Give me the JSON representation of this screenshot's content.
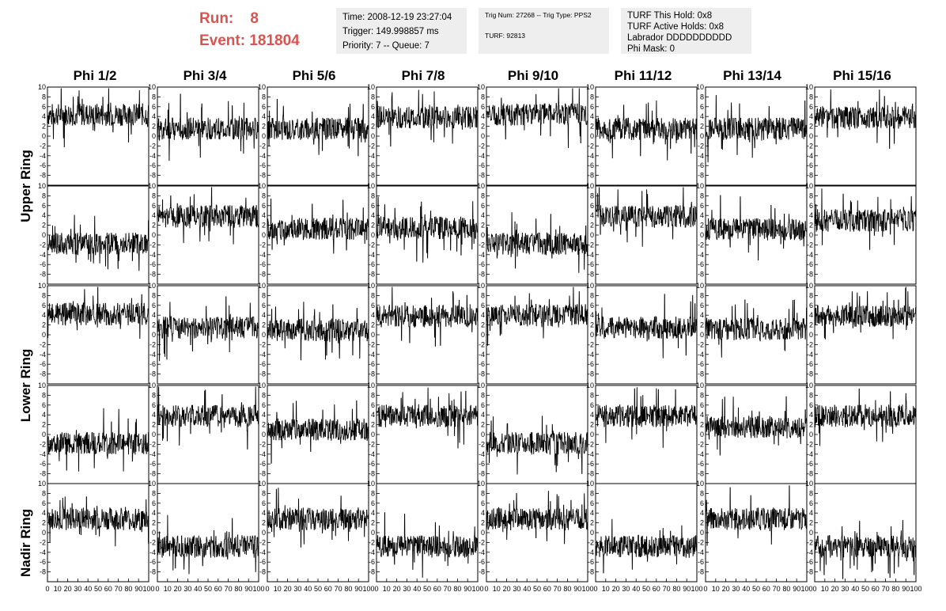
{
  "run": {
    "run_label": "Run:    8",
    "event_label": "Event: 181804"
  },
  "time_panel": {
    "time": "Time: 2008-12-19 23:27:04",
    "trigger": "Trigger: 149.998857 ms",
    "priority": "Priority: 7 -- Queue: 7"
  },
  "trig_panel": {
    "trig": "Trig Num: 27268 -- Trig Type: PPS2",
    "turf": "TURF: 92813"
  },
  "turf_panel": {
    "this_hold": "TURF This Hold: 0x8",
    "active_holds": "TURF Active Holds: 0x8",
    "labrador": "Labrador DDDDDDDDDD",
    "phi_mask": "Phi Mask: 0"
  },
  "phi_headers": [
    "Phi 1/2",
    "Phi 3/4",
    "Phi 5/6",
    "Phi 7/8",
    "Phi 9/10",
    "Phi 11/12",
    "Phi 13/14",
    "Phi 15/16"
  ],
  "ring_labels": [
    "Upper Ring",
    "Lower Ring",
    "Nadir Ring"
  ],
  "chart_data": {
    "type": "line",
    "layout": "grid of 5 rows x 8 columns of waveform panels",
    "xlim": [
      0,
      100
    ],
    "ylim": [
      -10,
      10
    ],
    "x_ticks": [
      0,
      10,
      20,
      30,
      40,
      50,
      60,
      70,
      80,
      90,
      100
    ],
    "y_ticks": [
      -8,
      -6,
      -4,
      -2,
      0,
      2,
      4,
      6,
      8,
      10
    ],
    "grid": false,
    "baselines": [
      [
        4.4,
        1.5,
        1.5,
        3.8,
        4.4,
        1.5,
        1.5,
        3.8
      ],
      [
        -1.8,
        3.8,
        1.2,
        1.5,
        -1.8,
        3.8,
        1.2,
        3.0
      ],
      [
        4.2,
        1.5,
        1.0,
        3.8,
        4.0,
        1.5,
        1.2,
        3.8
      ],
      [
        -1.8,
        3.8,
        1.0,
        3.8,
        -1.8,
        3.8,
        1.5,
        3.8
      ],
      [
        2.8,
        -2.8,
        2.8,
        -2.8,
        2.8,
        -2.8,
        2.8,
        -2.8
      ]
    ],
    "x_axis_labels_rows": [
      4
    ]
  }
}
